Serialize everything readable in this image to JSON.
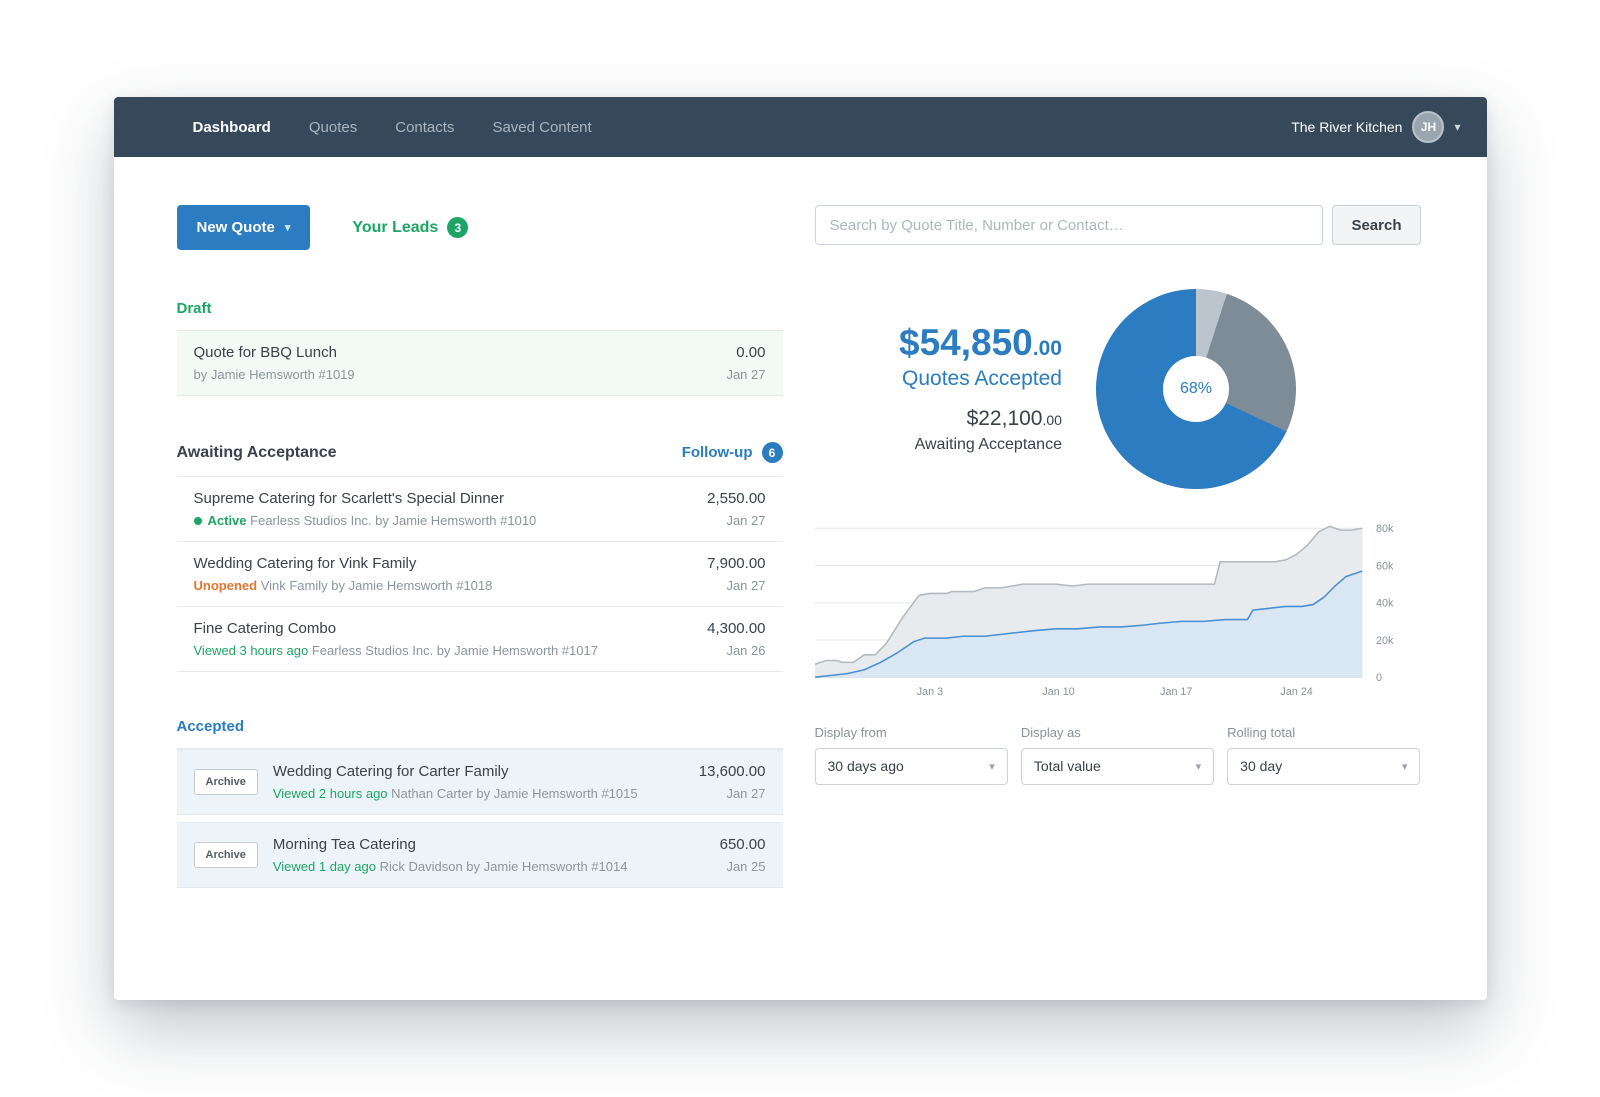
{
  "colors": {
    "nav_bg": "#35495b",
    "accent_blue": "#2b7cc0",
    "green": "#1ea565",
    "orange": "#e0762f"
  },
  "nav": {
    "items": [
      {
        "label": "Dashboard",
        "active": true
      },
      {
        "label": "Quotes",
        "active": false
      },
      {
        "label": "Contacts",
        "active": false
      },
      {
        "label": "Saved Content",
        "active": false
      }
    ],
    "account": {
      "name": "The River Kitchen",
      "avatar_initials": "JH"
    }
  },
  "toolbar": {
    "new_quote_label": "New Quote",
    "your_leads_label": "Your Leads",
    "your_leads_count": "3"
  },
  "quote_lists": {
    "draft": {
      "title": "Draft",
      "items": [
        {
          "title": "Quote for BBQ Lunch",
          "subtitle": "by Jamie Hemsworth #1019",
          "amount": "0.00",
          "date": "Jan 27"
        }
      ]
    },
    "awaiting": {
      "title": "Awaiting Acceptance",
      "followup_label": "Follow-up",
      "followup_count": "6",
      "items": [
        {
          "title": "Supreme Catering for Scarlett's Special Dinner",
          "status": "Active",
          "subtitle": "Fearless Studios Inc. by Jamie Hemsworth #1010",
          "amount": "2,550.00",
          "date": "Jan 27"
        },
        {
          "title": "Wedding Catering for Vink Family",
          "status": "Unopened",
          "subtitle": "Vink Family by Jamie Hemsworth #1018",
          "amount": "7,900.00",
          "date": "Jan 27"
        },
        {
          "title": "Fine Catering Combo",
          "status": "Viewed 3 hours ago",
          "subtitle": "Fearless Studios Inc. by Jamie Hemsworth #1017",
          "amount": "4,300.00",
          "date": "Jan 26"
        }
      ]
    },
    "accepted": {
      "title": "Accepted",
      "archive_label": "Archive",
      "items": [
        {
          "title": "Wedding Catering for Carter Family",
          "status": "Viewed 2 hours ago",
          "subtitle": "Nathan Carter by Jamie Hemsworth #1015",
          "amount": "13,600.00",
          "date": "Jan 27"
        },
        {
          "title": "Morning Tea Catering",
          "status": "Viewed 1 day ago",
          "subtitle": "Rick Davidson by Jamie Hemsworth #1014",
          "amount": "650.00",
          "date": "Jan 25"
        }
      ]
    }
  },
  "search": {
    "placeholder": "Search by Quote Title, Number or Contact…",
    "button_label": "Search"
  },
  "stats": {
    "accepted_amount_main": "$54,850",
    "accepted_amount_cents": ".00",
    "accepted_label": "Quotes Accepted",
    "awaiting_amount_main": "$22,100",
    "awaiting_amount_cents": ".00",
    "awaiting_label": "Awaiting Acceptance"
  },
  "filters": {
    "groups": [
      {
        "label": "Display from",
        "value": "30 days ago"
      },
      {
        "label": "Display as",
        "value": "Total value"
      },
      {
        "label": "Rolling total",
        "value": "30 day"
      }
    ]
  },
  "chart_data": [
    {
      "type": "pie",
      "center_label": "68%",
      "segments": [
        {
          "label": "segment-light",
          "value": 5,
          "color": "#bcc5cd"
        },
        {
          "label": "segment-gray",
          "value": 27,
          "color": "#7e8c98"
        },
        {
          "label": "accepted",
          "value": 68,
          "color": "#2b7cc0"
        }
      ]
    },
    {
      "type": "area",
      "ylim": [
        0,
        84
      ],
      "y_ticks": [
        {
          "value": 80,
          "label": "80k"
        },
        {
          "value": 60,
          "label": "60k"
        },
        {
          "value": 40,
          "label": "40k"
        },
        {
          "value": 20,
          "label": "20k"
        },
        {
          "value": 0,
          "label": "0"
        }
      ],
      "x_ticks": [
        {
          "pos": 21,
          "label": "Jan 3"
        },
        {
          "pos": 44.5,
          "label": "Jan 10"
        },
        {
          "pos": 66,
          "label": "Jan 17"
        },
        {
          "pos": 88,
          "label": "Jan 24"
        }
      ],
      "series": [
        {
          "name": "total",
          "color": "#b2b9bf",
          "fill": "#e8ebed",
          "points": [
            [
              0,
              7
            ],
            [
              2,
              9
            ],
            [
              4,
              9
            ],
            [
              5,
              8
            ],
            [
              7,
              8
            ],
            [
              9,
              12
            ],
            [
              11,
              12
            ],
            [
              13,
              18
            ],
            [
              16,
              32
            ],
            [
              19,
              44
            ],
            [
              21,
              45
            ],
            [
              24,
              45
            ],
            [
              25,
              46
            ],
            [
              29,
              46
            ],
            [
              31,
              48
            ],
            [
              34,
              48
            ],
            [
              36,
              49
            ],
            [
              38,
              50
            ],
            [
              44,
              50
            ],
            [
              47,
              49
            ],
            [
              50,
              50
            ],
            [
              58,
              50
            ],
            [
              65,
              50
            ],
            [
              73,
              50
            ],
            [
              74,
              62
            ],
            [
              84,
              62
            ],
            [
              86,
              63
            ],
            [
              88,
              66
            ],
            [
              90,
              71
            ],
            [
              92,
              78
            ],
            [
              94,
              81
            ],
            [
              96,
              79
            ],
            [
              98,
              79
            ],
            [
              100,
              80
            ]
          ]
        },
        {
          "name": "accepted",
          "color": "#4a8fd1",
          "fill": "#d9e6f4",
          "points": [
            [
              0,
              0
            ],
            [
              3,
              1
            ],
            [
              6,
              2
            ],
            [
              9,
              4
            ],
            [
              12,
              8
            ],
            [
              15,
              13
            ],
            [
              18,
              19
            ],
            [
              20,
              21
            ],
            [
              24,
              21
            ],
            [
              27,
              22
            ],
            [
              31,
              22
            ],
            [
              34,
              23
            ],
            [
              37,
              24
            ],
            [
              40,
              25
            ],
            [
              44,
              26
            ],
            [
              48,
              26
            ],
            [
              52,
              27
            ],
            [
              56,
              27
            ],
            [
              60,
              28
            ],
            [
              63,
              29
            ],
            [
              67,
              30
            ],
            [
              71,
              30
            ],
            [
              75,
              31
            ],
            [
              79,
              31
            ],
            [
              80,
              36
            ],
            [
              83,
              37
            ],
            [
              86,
              38
            ],
            [
              89,
              38
            ],
            [
              91,
              39
            ],
            [
              93,
              43
            ],
            [
              95,
              49
            ],
            [
              97,
              54
            ],
            [
              100,
              57
            ]
          ]
        }
      ]
    }
  ]
}
